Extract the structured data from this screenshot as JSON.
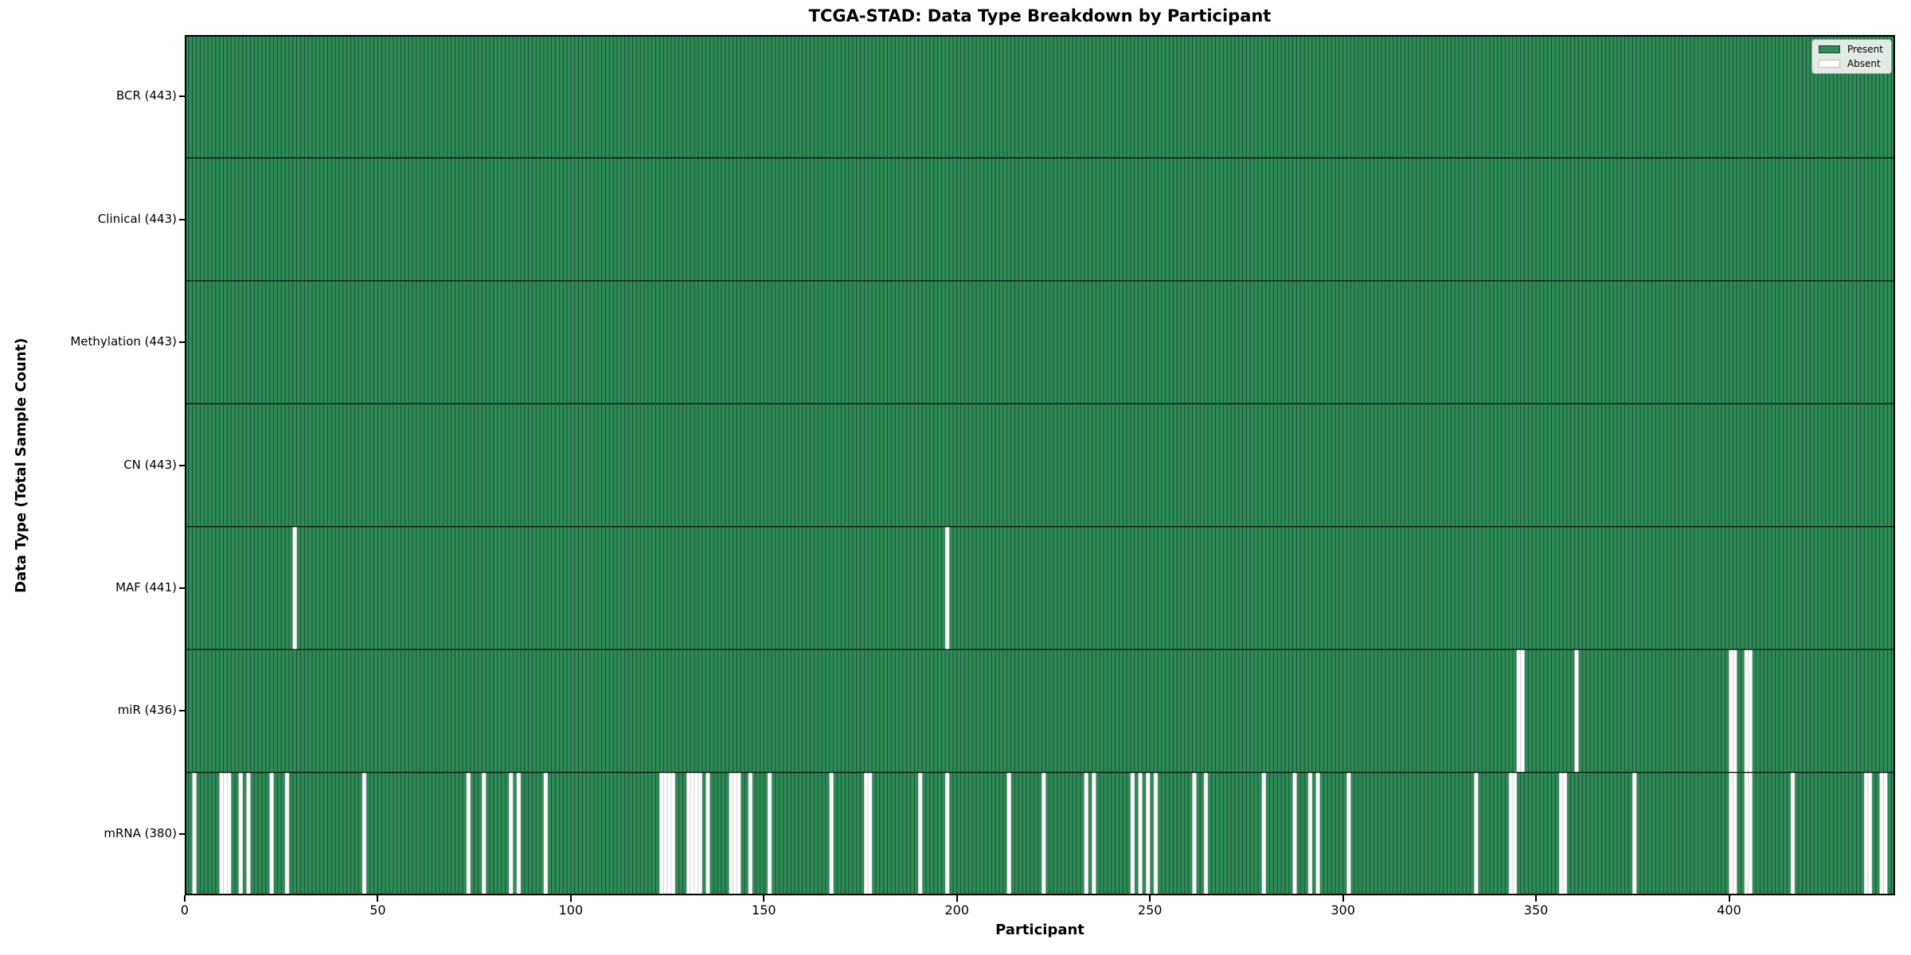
{
  "chart_data": {
    "type": "heatmap",
    "title": "TCGA-STAD: Data Type Breakdown by Participant",
    "xlabel": "Participant",
    "ylabel": "Data Type (Total Sample Count)",
    "n_participants": 443,
    "x_ticks": [
      0,
      50,
      100,
      150,
      200,
      250,
      300,
      350,
      400
    ],
    "legend": [
      {
        "label": "Present",
        "color": "#2E8B57"
      },
      {
        "label": "Absent",
        "color": "#FFFFFF"
      }
    ],
    "colors": {
      "present": "#2E8B57",
      "absent": "#FFFFFF",
      "cell_edge": "#1B4F33",
      "absent_edge": "#C9C9C9",
      "row_separator": "#101010",
      "plot_border": "#000000"
    },
    "rows": [
      {
        "label": "BCR (443)",
        "name": "BCR",
        "count": 443,
        "absent": []
      },
      {
        "label": "Clinical (443)",
        "name": "Clinical",
        "count": 443,
        "absent": []
      },
      {
        "label": "Methylation (443)",
        "name": "Methylation",
        "count": 443,
        "absent": []
      },
      {
        "label": "CN (443)",
        "name": "CN",
        "count": 443,
        "absent": []
      },
      {
        "label": "MAF (441)",
        "name": "MAF",
        "count": 441,
        "absent": [
          28,
          197
        ]
      },
      {
        "label": "miR (436)",
        "name": "miR",
        "count": 436,
        "absent": [
          345,
          346,
          360,
          400,
          401,
          404,
          405
        ]
      },
      {
        "label": "mRNA (380)",
        "name": "mRNA",
        "count": 380,
        "absent": [
          2,
          9,
          10,
          11,
          14,
          16,
          22,
          26,
          46,
          73,
          77,
          84,
          86,
          93,
          123,
          124,
          125,
          126,
          130,
          131,
          132,
          133,
          135,
          141,
          142,
          143,
          146,
          151,
          167,
          176,
          177,
          190,
          197,
          213,
          222,
          233,
          235,
          245,
          247,
          249,
          251,
          261,
          264,
          279,
          287,
          291,
          293,
          301,
          334,
          343,
          344,
          356,
          357,
          375,
          400,
          401,
          404,
          405,
          416,
          435,
          436,
          439,
          440
        ]
      }
    ]
  }
}
